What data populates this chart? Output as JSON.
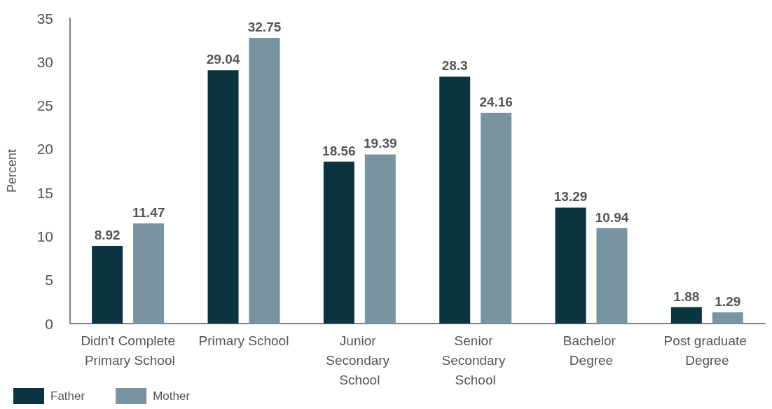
{
  "chart_data": {
    "type": "bar",
    "ylabel": "Percent",
    "categories": [
      "Didn't Complete Primary School",
      "Primary School",
      "Junior Secondary School",
      "Senior Secondary School",
      "Bachelor Degree",
      "Post graduate Degree"
    ],
    "series": [
      {
        "name": "Father",
        "color": "#0b3340",
        "values": [
          8.92,
          29.04,
          18.56,
          28.3,
          13.29,
          1.88
        ]
      },
      {
        "name": "Mother",
        "color": "#7894a1",
        "values": [
          11.47,
          32.75,
          19.39,
          24.16,
          10.94,
          1.29
        ]
      }
    ],
    "ylim": [
      0,
      35
    ],
    "yticks": [
      0,
      5,
      10,
      15,
      20,
      25,
      30,
      35
    ],
    "data_labels": true,
    "legend": "bottom left"
  }
}
